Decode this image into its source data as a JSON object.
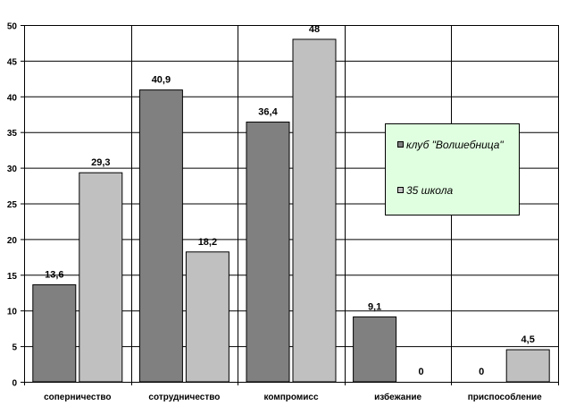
{
  "chart_data": {
    "type": "bar",
    "title": "",
    "xlabel": "",
    "ylabel": "",
    "categories": [
      "соперничество",
      "сотрудничество",
      "компромисс",
      "избежание",
      "приспособление"
    ],
    "series": [
      {
        "name": "клуб \"Волшебница\"",
        "values": [
          13.6,
          40.9,
          36.4,
          9.1,
          0
        ],
        "labels": [
          "13,6",
          "40,9",
          "36,4",
          "9,1",
          "0"
        ],
        "color": "#808080"
      },
      {
        "name": "35 школа",
        "values": [
          29.3,
          18.2,
          48,
          0,
          4.5
        ],
        "labels": [
          "29,3",
          "18,2",
          "48",
          "0",
          "4,5"
        ],
        "color": "#c0c0c0"
      }
    ],
    "ylim": [
      0,
      50
    ],
    "yticks": [
      0,
      5,
      10,
      15,
      20,
      25,
      30,
      35,
      40,
      45,
      50
    ],
    "grid": true,
    "legend_position": "right",
    "legend_background": "#e0ffe0"
  }
}
